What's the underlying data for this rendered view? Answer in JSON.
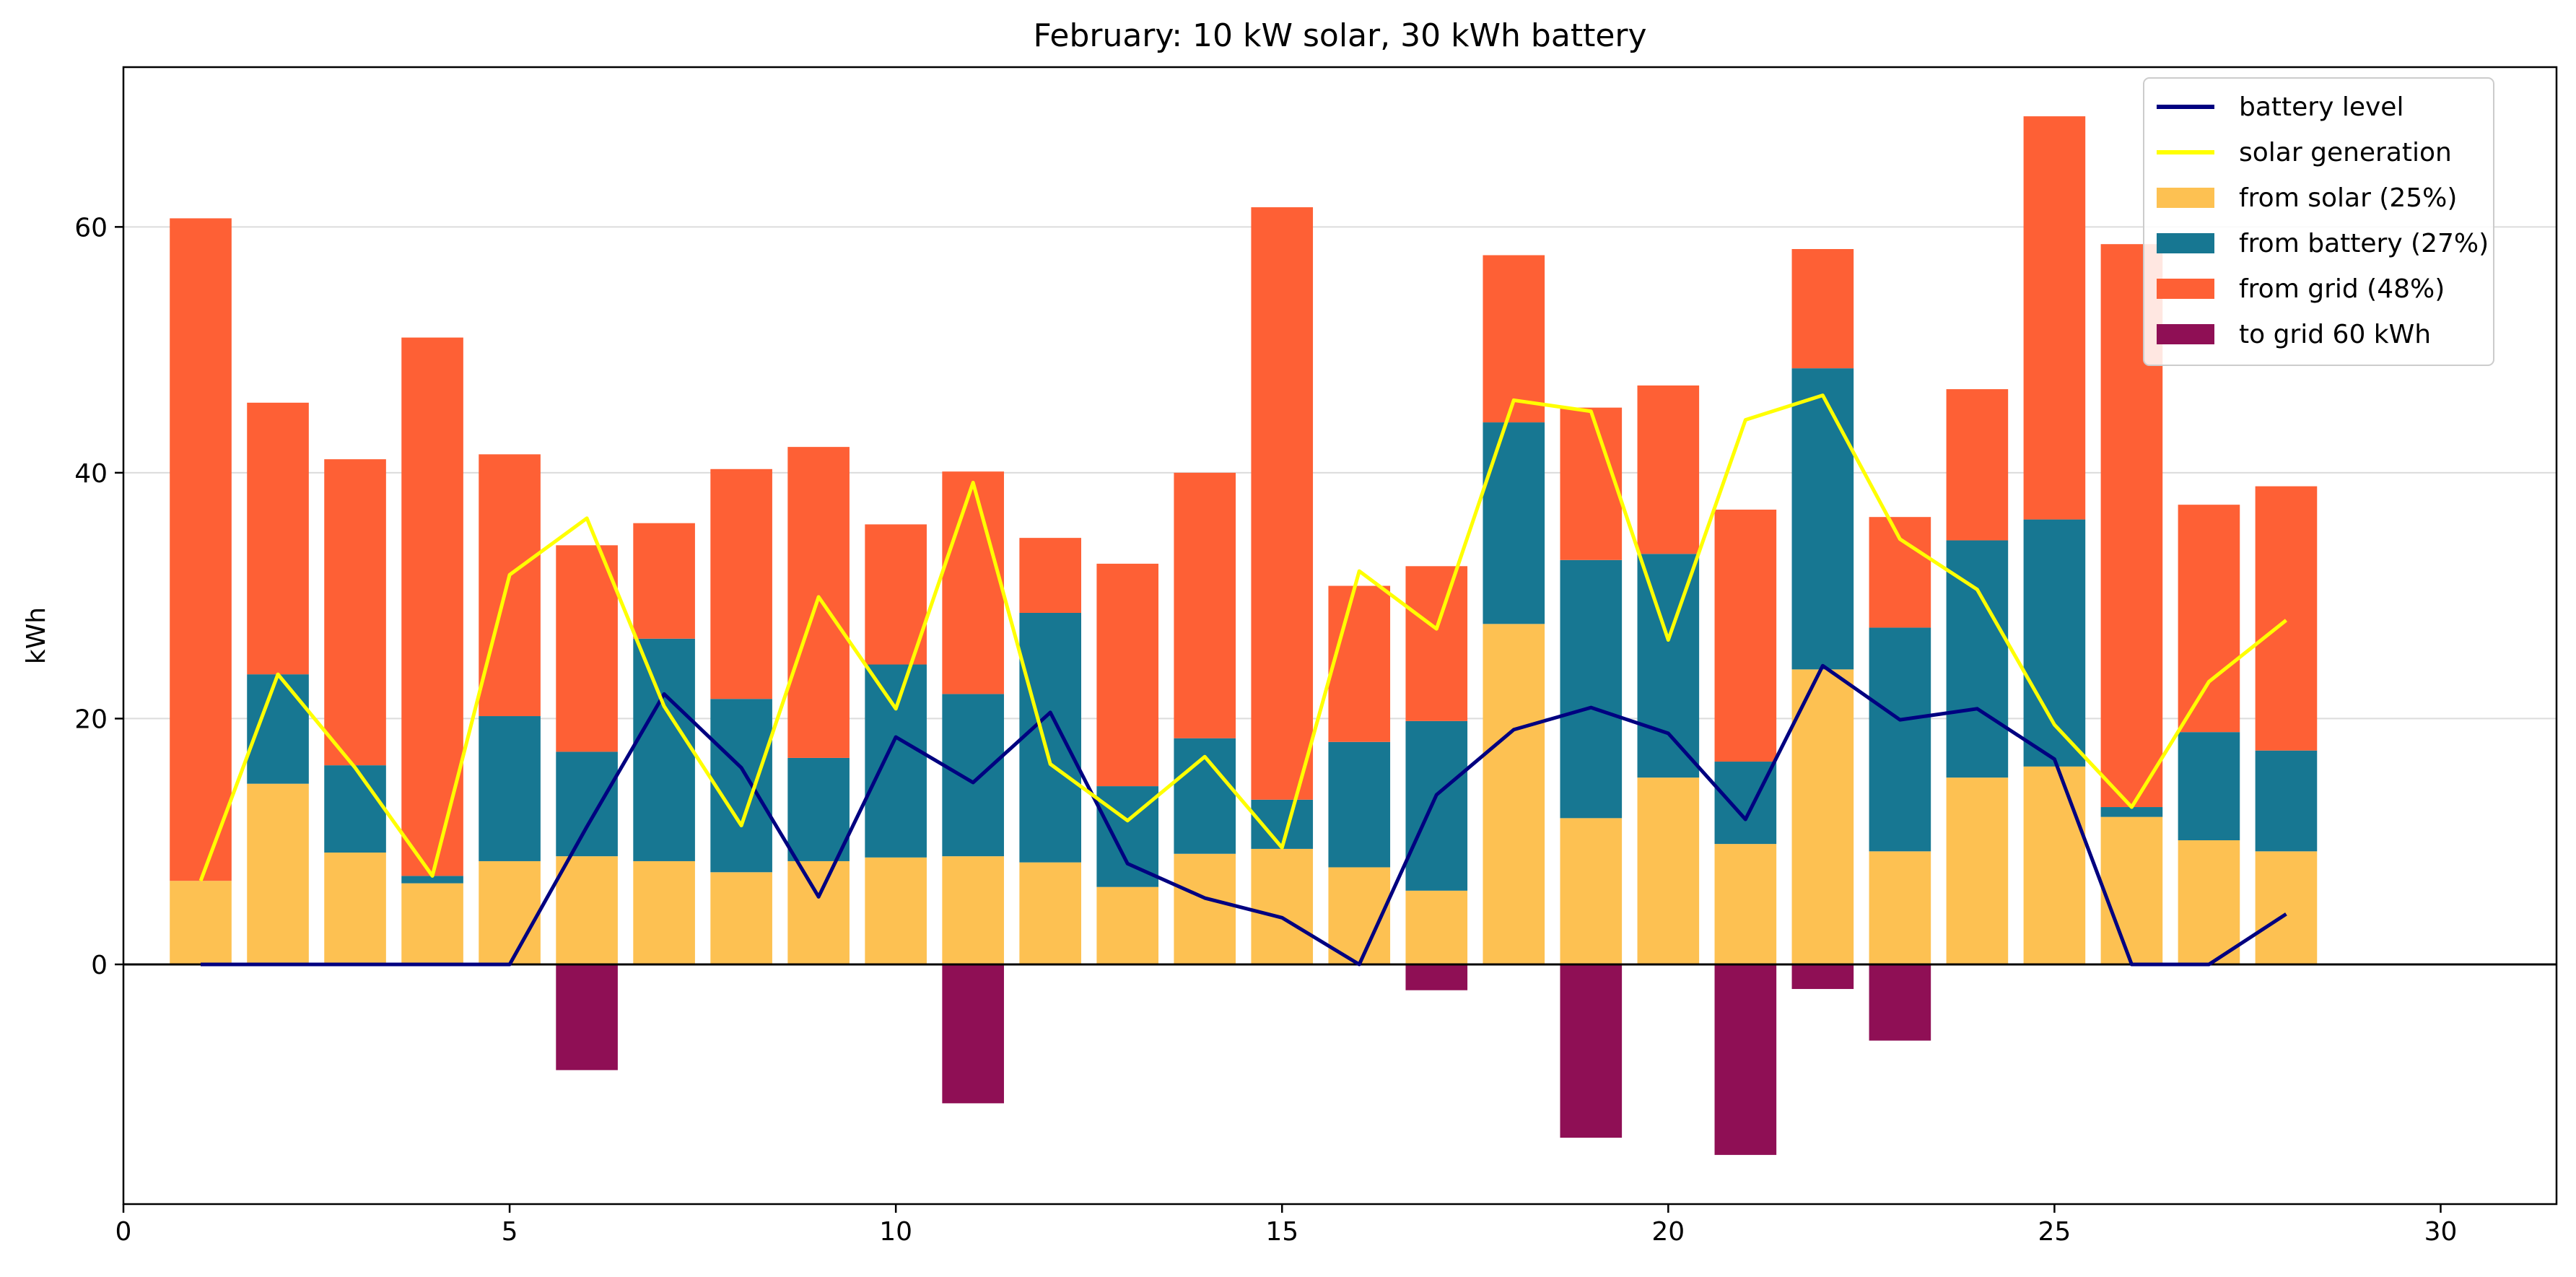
{
  "chart_data": {
    "type": "bar",
    "title": "February: 10 kW solar, 30 kWh battery",
    "xlabel": "",
    "ylabel": "kWh",
    "xlim": [
      0,
      31.5
    ],
    "ylim": [
      -19.5,
      73
    ],
    "xticks": [
      0,
      5,
      10,
      15,
      20,
      25,
      30
    ],
    "yticks": [
      0,
      20,
      40,
      60
    ],
    "grid": "horizontal",
    "legend": "top-right",
    "colors": {
      "from_solar": "#FDC152",
      "from_battery": "#177792",
      "from_grid": "#FE6035",
      "to_grid": "#8F0F55",
      "battery_level": "#000080",
      "solar_generation": "#FFFF00"
    },
    "x": [
      1,
      2,
      3,
      4,
      5,
      6,
      7,
      8,
      9,
      10,
      11,
      12,
      13,
      14,
      15,
      16,
      17,
      18,
      19,
      20,
      21,
      22,
      23,
      24,
      25,
      26,
      27,
      28
    ],
    "series": [
      {
        "name": "from solar (25%)",
        "type": "bar",
        "values": [
          6.8,
          14.7,
          9.1,
          6.6,
          8.4,
          8.8,
          8.4,
          7.5,
          8.4,
          8.7,
          8.8,
          8.3,
          6.3,
          9.0,
          9.4,
          7.9,
          6.0,
          27.7,
          11.9,
          15.2,
          9.8,
          24.0,
          9.2,
          15.2,
          16.1,
          12.0,
          10.1,
          9.2
        ]
      },
      {
        "name": "from battery (27%)",
        "type": "bar",
        "values": [
          0,
          8.9,
          7.1,
          0.6,
          11.8,
          8.5,
          18.1,
          14.1,
          8.4,
          15.7,
          13.2,
          20.3,
          8.2,
          9.4,
          4.0,
          10.2,
          13.8,
          16.4,
          21.0,
          18.2,
          6.7,
          24.5,
          18.2,
          19.3,
          20.1,
          0.8,
          8.8,
          8.2
        ]
      },
      {
        "name": "from grid (48%)",
        "type": "bar",
        "values": [
          53.9,
          22.1,
          24.9,
          43.8,
          21.3,
          16.8,
          9.4,
          18.7,
          25.3,
          11.4,
          18.1,
          6.1,
          18.1,
          21.6,
          48.2,
          12.7,
          12.6,
          13.6,
          12.4,
          13.7,
          20.5,
          9.7,
          9.0,
          12.3,
          32.8,
          45.8,
          18.5,
          21.5
        ]
      },
      {
        "name": "to grid 60 kWh",
        "type": "bar",
        "values": [
          0,
          0,
          0,
          0,
          0,
          -8.6,
          0,
          0,
          0,
          0,
          -11.3,
          0,
          0,
          0,
          0,
          0,
          -2.1,
          0,
          -14.1,
          0,
          -15.5,
          -2.0,
          -6.2,
          0,
          0,
          0,
          0,
          0
        ]
      },
      {
        "name": "battery level",
        "type": "line",
        "values": [
          0,
          0,
          0,
          0,
          0,
          11.2,
          22.0,
          16.0,
          5.5,
          18.5,
          14.8,
          20.5,
          8.2,
          5.4,
          3.8,
          0,
          13.8,
          19.1,
          20.9,
          18.8,
          11.8,
          24.3,
          19.9,
          20.8,
          16.7,
          0,
          0,
          4.1
        ]
      },
      {
        "name": "solar generation",
        "type": "line",
        "values": [
          6.8,
          23.6,
          16.0,
          7.2,
          31.7,
          36.3,
          21.0,
          11.3,
          29.9,
          20.8,
          39.2,
          16.3,
          11.7,
          16.9,
          9.5,
          32.0,
          27.3,
          45.9,
          45.0,
          26.4,
          44.3,
          46.3,
          34.6,
          30.5,
          19.5,
          12.8,
          23.0,
          28.0
        ]
      }
    ]
  }
}
